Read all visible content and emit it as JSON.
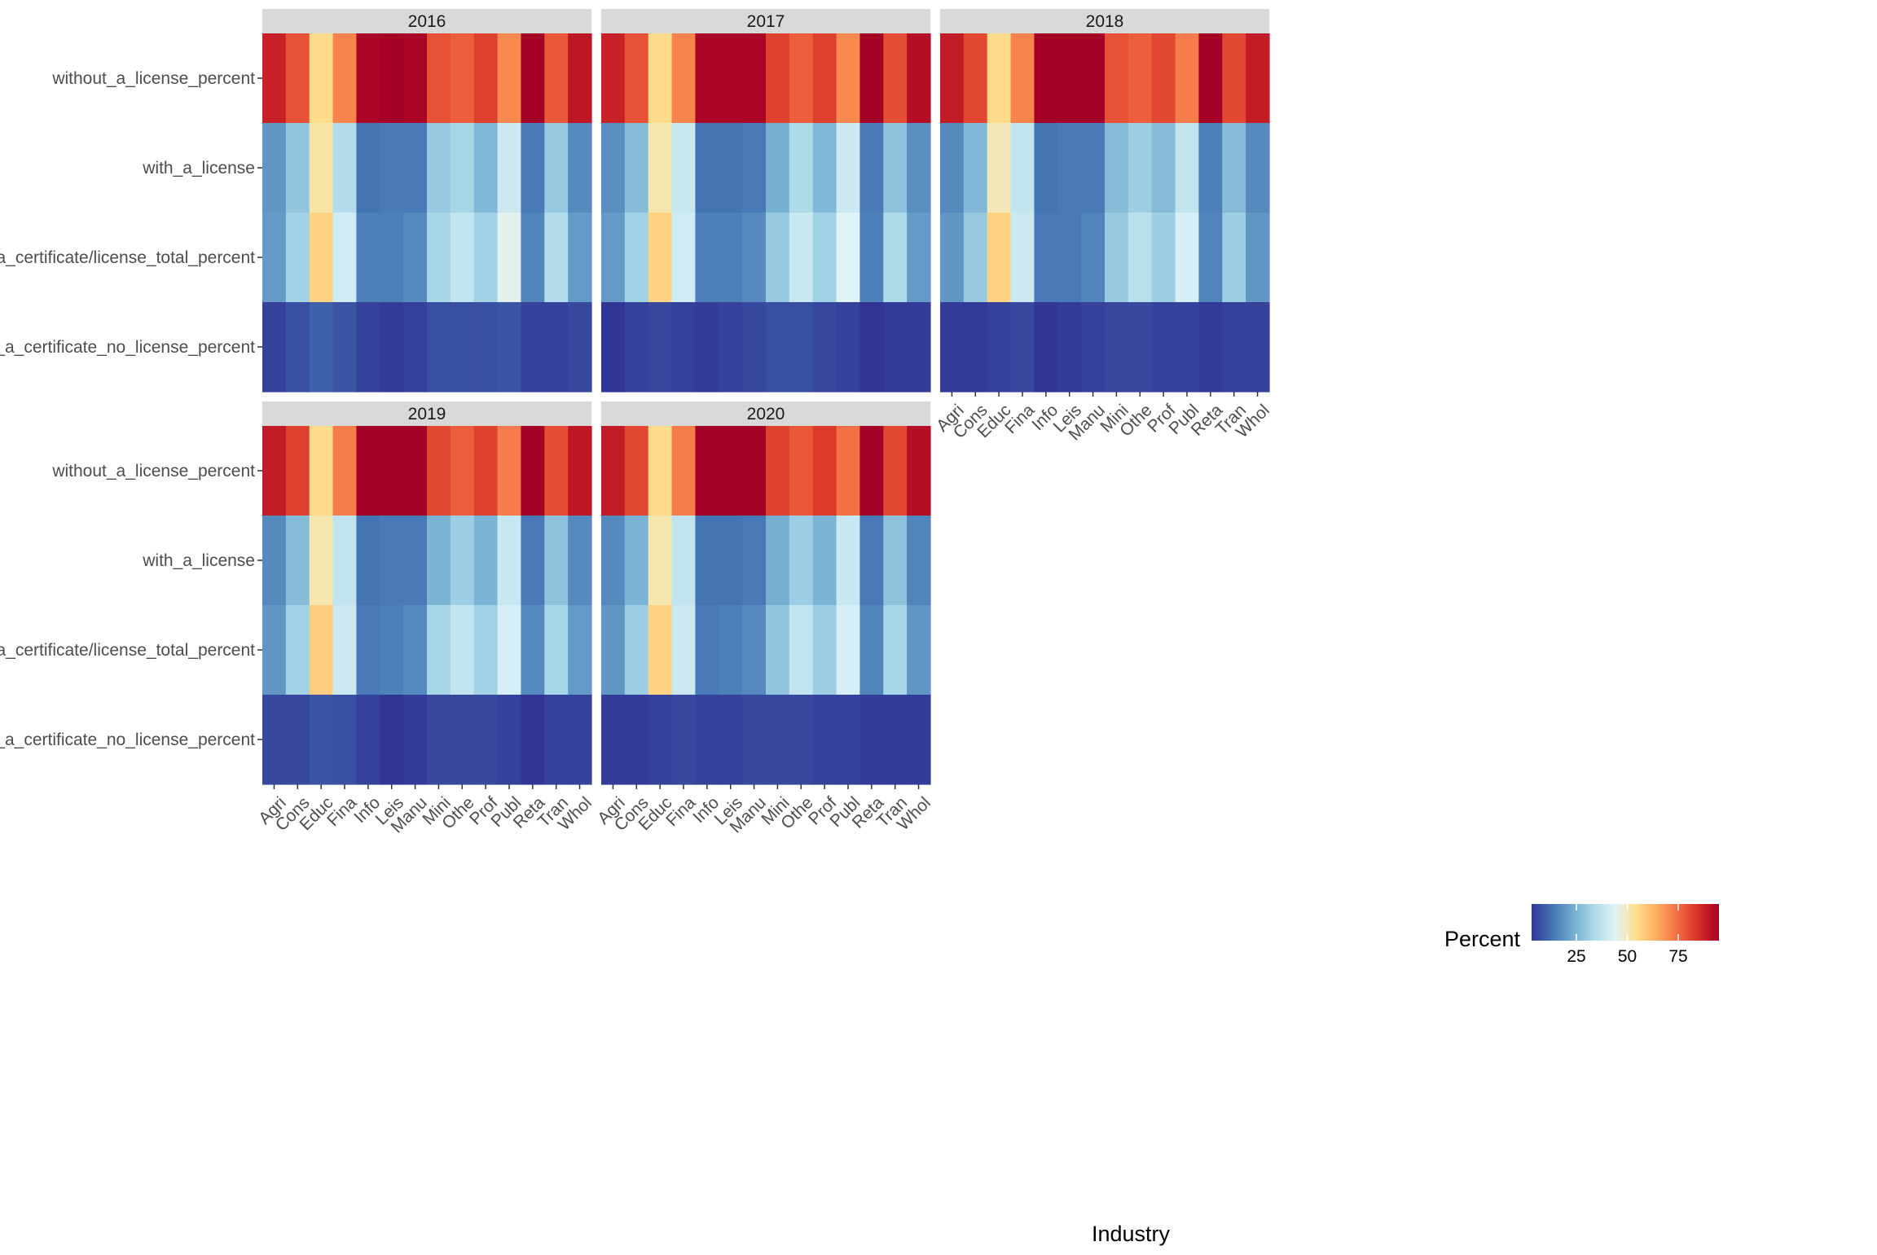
{
  "chart_data": {
    "type": "heatmap",
    "xlabel": "Industry",
    "legend": {
      "title": "Percent",
      "ticks": [
        25,
        50,
        75
      ],
      "position": "right",
      "range": [
        3,
        95
      ]
    },
    "color_scale": [
      "#313695",
      "#4575b4",
      "#74add1",
      "#abd9e9",
      "#e0f3f8",
      "#fee090",
      "#fdae61",
      "#f46d43",
      "#d73027",
      "#a50026"
    ],
    "categories": [
      "Agri",
      "Cons",
      "Educ",
      "Fina",
      "Info",
      "Leis",
      "Manu",
      "Mini",
      "Othe",
      "Prof",
      "Publ",
      "Reta",
      "Tran",
      "Whol"
    ],
    "rows": [
      "without_a_license_percent",
      "with_a_license",
      "with_a_certificate/license_total_percent",
      "with_a_certificate_no_license_percent"
    ],
    "facets": [
      {
        "year": "2016",
        "values": [
          [
            88,
            79,
            55,
            71,
            94,
            95,
            94,
            79,
            77,
            82,
            70,
            95,
            78,
            90
          ],
          [
            19,
            29,
            52,
            35,
            13,
            14,
            14,
            30,
            33,
            26,
            40,
            14,
            30,
            17
          ],
          [
            20,
            32,
            57,
            41,
            15,
            15,
            17,
            33,
            38,
            32,
            45,
            16,
            35,
            20
          ],
          [
            5,
            7,
            10,
            8,
            5,
            4,
            5,
            7,
            7,
            7,
            8,
            5,
            5,
            6
          ]
        ]
      },
      {
        "year": "2017",
        "values": [
          [
            88,
            79,
            55,
            71,
            94,
            94,
            94,
            82,
            77,
            82,
            70,
            95,
            80,
            92
          ],
          [
            18,
            27,
            51,
            39,
            13,
            13,
            14,
            24,
            34,
            26,
            40,
            14,
            28,
            18
          ],
          [
            20,
            32,
            57,
            41,
            15,
            15,
            17,
            30,
            39,
            32,
            44,
            15,
            34,
            20
          ],
          [
            3,
            5,
            6,
            5,
            4,
            5,
            6,
            7,
            7,
            6,
            5,
            3,
            4,
            4
          ]
        ]
      },
      {
        "year": "2018",
        "values": [
          [
            89,
            81,
            55,
            71,
            96,
            95,
            95,
            79,
            77,
            81,
            72,
            96,
            81,
            89
          ],
          [
            17,
            26,
            50,
            38,
            13,
            14,
            14,
            27,
            31,
            27,
            38,
            15,
            27,
            17
          ],
          [
            19,
            30,
            57,
            40,
            14,
            14,
            16,
            30,
            36,
            31,
            42,
            16,
            31,
            19
          ],
          [
            4,
            4,
            5,
            6,
            3,
            4,
            5,
            6,
            6,
            5,
            5,
            4,
            5,
            5
          ]
        ]
      },
      {
        "year": "2019",
        "values": [
          [
            89,
            82,
            55,
            72,
            96,
            96,
            96,
            81,
            77,
            82,
            72,
            96,
            80,
            90
          ],
          [
            17,
            27,
            51,
            38,
            13,
            14,
            14,
            25,
            31,
            25,
            39,
            14,
            28,
            17
          ],
          [
            19,
            32,
            58,
            40,
            14,
            15,
            17,
            33,
            38,
            32,
            42,
            17,
            33,
            20
          ],
          [
            6,
            6,
            8,
            7,
            5,
            3,
            4,
            6,
            6,
            6,
            5,
            3,
            5,
            5
          ]
        ]
      },
      {
        "year": "2020",
        "values": [
          [
            89,
            81,
            55,
            72,
            96,
            96,
            96,
            82,
            78,
            83,
            74,
            96,
            81,
            92
          ],
          [
            17,
            25,
            51,
            38,
            13,
            13,
            14,
            24,
            31,
            25,
            39,
            14,
            28,
            16
          ],
          [
            19,
            31,
            57,
            40,
            14,
            15,
            17,
            29,
            38,
            31,
            42,
            16,
            33,
            19
          ],
          [
            4,
            4,
            5,
            6,
            5,
            5,
            6,
            6,
            6,
            5,
            5,
            4,
            4,
            4
          ]
        ]
      }
    ]
  }
}
